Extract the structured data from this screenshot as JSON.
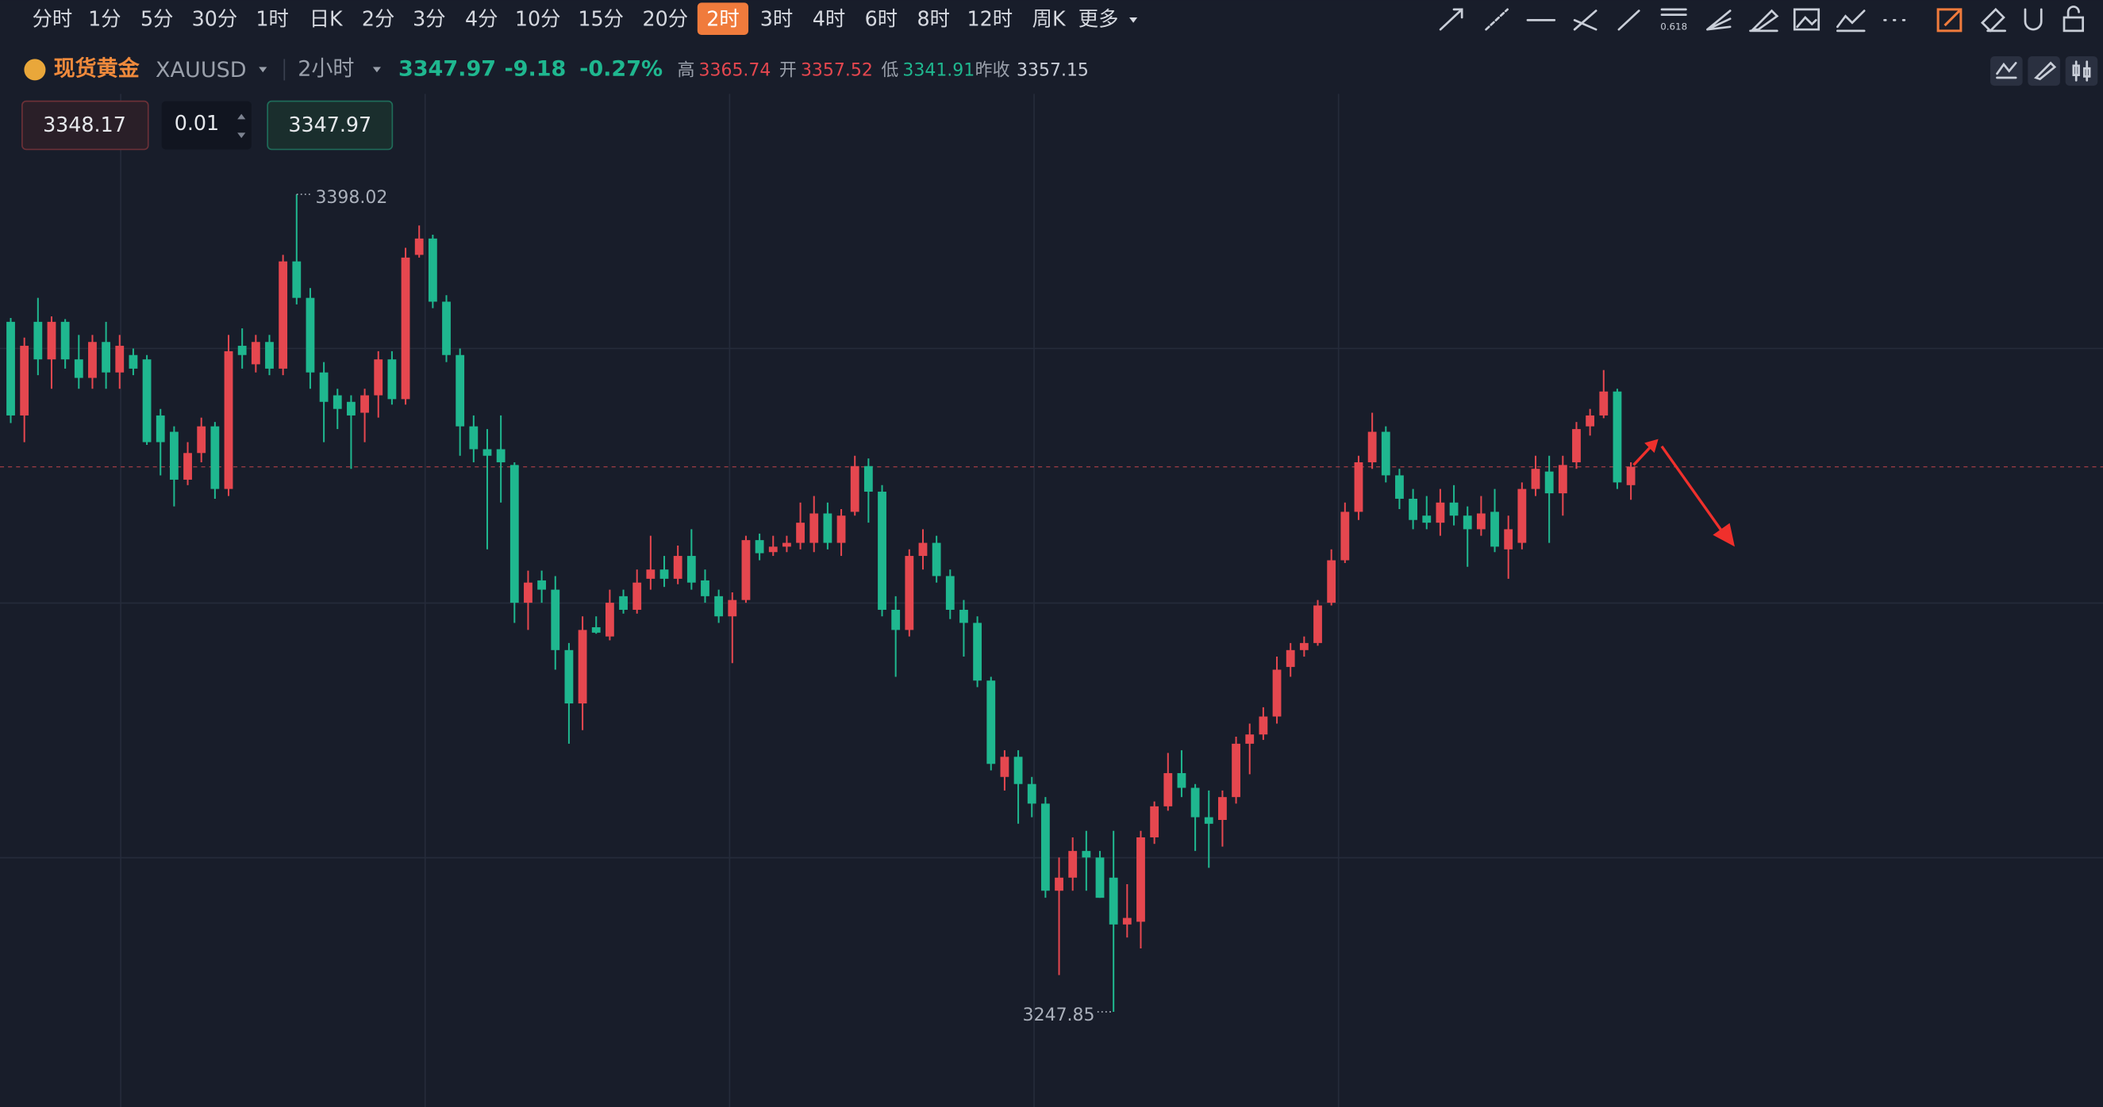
{
  "toolbar": {
    "timeframes": [
      "分时",
      "1分",
      "5分",
      "30分",
      "1时",
      "日K",
      "2分",
      "3分",
      "4分",
      "10分",
      "15分",
      "20分",
      "2时",
      "3时",
      "4时",
      "6时",
      "8时",
      "12时",
      "周K",
      "更多"
    ],
    "active": "2时",
    "fib_label": "0.618"
  },
  "header": {
    "name": "现货黄金",
    "symbol": "XAUUSD",
    "interval": "2小时",
    "last": 3347.97,
    "change": -9.18,
    "change_pct": "-0.27%",
    "high_label": "高",
    "high": 3365.74,
    "open_label": "开",
    "open": 3357.52,
    "low_label": "低",
    "low": 3341.91,
    "prev_close_label": "昨收",
    "prev_close": 3357.15
  },
  "order": {
    "sell": 3348.17,
    "quantity": 0.01,
    "buy": 3347.97
  },
  "chart_data": {
    "type": "candlestick",
    "up_color": "#e5474f",
    "down_color": "#1fb78f",
    "open": [
      3374.6,
      3357.4,
      3374.6,
      3367.7,
      3374.6,
      3367.7,
      3364.3,
      3370.9,
      3365.3,
      3368.5,
      3367.7,
      3357.4,
      3354.4,
      3345.6,
      3350.5,
      3355.4,
      3343.9,
      3370.2,
      3366.8,
      3370.9,
      3366.0,
      3385.7,
      3379.0,
      3365.3,
      3361.1,
      3359.9,
      3357.9,
      3361.1,
      3367.7,
      3360.4,
      3386.9,
      3389.9,
      3378.3,
      3368.5,
      3355.4,
      3351.2,
      3351.2,
      3348.3,
      3323.0,
      3327.1,
      3325.4,
      3314.3,
      3304.5,
      3318.5,
      3316.8,
      3324.2,
      3321.7,
      3327.4,
      3329.1,
      3327.4,
      3331.6,
      3327.1,
      3324.2,
      3320.5,
      3323.5,
      3334.5,
      3332.3,
      3333.3,
      3334.0,
      3334.0,
      3339.4,
      3334.0,
      3339.7,
      3348.1,
      3343.4,
      3321.7,
      3318.0,
      3331.6,
      3334.0,
      3327.9,
      3321.7,
      3319.3,
      3308.7,
      3291.0,
      3294.7,
      3289.7,
      3286.1,
      3270.1,
      3272.5,
      3277.4,
      3276.2,
      3272.5,
      3263.9,
      3264.4,
      3279.9,
      3285.6,
      3291.7,
      3289.0,
      3283.6,
      3283.1,
      3287.3,
      3297.1,
      3298.8,
      3302.1,
      3311.2,
      3314.3,
      3315.6,
      3323.0,
      3330.8,
      3339.7,
      3348.8,
      3354.4,
      3346.4,
      3342.1,
      3339.0,
      3337.7,
      3341.4,
      3339.0,
      3336.5,
      3339.7,
      3332.8,
      3334.0,
      3343.9,
      3347.1,
      3343.1,
      3348.8,
      3355.4,
      3357.4,
      3361.8,
      3344.6
    ],
    "high": [
      3375.3,
      3371.7,
      3379.0,
      3375.6,
      3375.1,
      3372.2,
      3372.2,
      3374.6,
      3372.2,
      3369.7,
      3368.5,
      3358.6,
      3355.4,
      3352.5,
      3357.0,
      3356.2,
      3372.2,
      3373.4,
      3372.2,
      3372.2,
      3386.9,
      3398.02,
      3380.8,
      3367.2,
      3362.3,
      3361.1,
      3362.3,
      3369.2,
      3369.2,
      3388.2,
      3392.3,
      3390.6,
      3379.5,
      3369.7,
      3357.4,
      3354.9,
      3357.4,
      3348.8,
      3328.9,
      3328.9,
      3327.9,
      3315.6,
      3320.5,
      3320.5,
      3325.4,
      3325.4,
      3329.1,
      3335.3,
      3331.6,
      3333.5,
      3336.5,
      3329.1,
      3325.4,
      3324.9,
      3335.3,
      3335.7,
      3335.3,
      3335.3,
      3341.4,
      3342.6,
      3341.4,
      3340.2,
      3350.0,
      3349.5,
      3344.6,
      3324.2,
      3332.8,
      3336.5,
      3335.3,
      3329.1,
      3323.5,
      3320.5,
      3309.4,
      3295.9,
      3295.9,
      3291.0,
      3287.3,
      3276.2,
      3279.9,
      3281.1,
      3277.4,
      3281.1,
      3271.3,
      3281.1,
      3286.5,
      3295.4,
      3295.9,
      3289.7,
      3288.5,
      3288.5,
      3298.4,
      3300.8,
      3303.8,
      3313.1,
      3315.6,
      3316.8,
      3323.5,
      3332.8,
      3341.4,
      3350.0,
      3357.9,
      3355.4,
      3347.6,
      3343.9,
      3342.6,
      3343.9,
      3344.6,
      3340.7,
      3342.6,
      3343.9,
      3339.0,
      3345.1,
      3350.0,
      3350.0,
      3350.0,
      3356.2,
      3358.6,
      3365.74,
      3362.3,
      3348.8
    ],
    "low": [
      3356.0,
      3352.5,
      3364.8,
      3362.3,
      3366.0,
      3362.3,
      3362.3,
      3362.3,
      3362.3,
      3364.8,
      3352.0,
      3346.4,
      3340.7,
      3344.6,
      3348.8,
      3342.1,
      3342.6,
      3366.0,
      3365.3,
      3364.8,
      3364.8,
      3377.8,
      3362.3,
      3352.5,
      3354.9,
      3347.6,
      3352.5,
      3357.0,
      3359.4,
      3359.4,
      3386.4,
      3377.1,
      3367.2,
      3350.0,
      3348.8,
      3332.8,
      3341.4,
      3319.3,
      3318.0,
      3323.0,
      3310.7,
      3297.1,
      3299.6,
      3317.3,
      3316.1,
      3321.0,
      3321.0,
      3325.4,
      3325.9,
      3326.4,
      3325.4,
      3323.0,
      3319.3,
      3311.9,
      3323.0,
      3330.8,
      3331.6,
      3332.3,
      3332.8,
      3332.3,
      3332.8,
      3331.6,
      3339.0,
      3337.7,
      3320.5,
      3309.4,
      3316.8,
      3329.1,
      3326.7,
      3320.0,
      3313.1,
      3307.5,
      3292.2,
      3288.5,
      3282.4,
      3283.6,
      3268.8,
      3254.6,
      3270.1,
      3270.1,
      3268.8,
      3247.85,
      3261.5,
      3259.5,
      3278.7,
      3284.8,
      3287.3,
      3277.4,
      3274.3,
      3278.2,
      3286.1,
      3291.5,
      3297.8,
      3300.8,
      3309.4,
      3313.1,
      3315.1,
      3322.5,
      3330.3,
      3338.2,
      3347.6,
      3345.1,
      3340.2,
      3336.5,
      3336.5,
      3335.3,
      3337.2,
      3329.6,
      3335.3,
      3332.3,
      3327.4,
      3332.8,
      3342.6,
      3334.0,
      3339.0,
      3347.6,
      3353.7,
      3356.9,
      3343.9,
      3341.91
    ],
    "close": [
      3357.4,
      3370.2,
      3367.7,
      3374.6,
      3367.7,
      3364.3,
      3370.9,
      3365.3,
      3370.2,
      3366.0,
      3352.5,
      3352.5,
      3345.6,
      3350.5,
      3355.4,
      3343.9,
      3369.2,
      3368.5,
      3370.9,
      3366.0,
      3385.7,
      3379.0,
      3365.3,
      3359.9,
      3358.6,
      3357.4,
      3361.1,
      3367.7,
      3360.4,
      3386.4,
      3389.9,
      3378.3,
      3368.5,
      3355.4,
      3351.2,
      3350.0,
      3348.8,
      3323.0,
      3326.7,
      3325.4,
      3314.3,
      3304.5,
      3318.0,
      3317.5,
      3323.0,
      3321.7,
      3326.7,
      3329.1,
      3327.4,
      3331.6,
      3326.7,
      3324.2,
      3320.5,
      3323.5,
      3334.5,
      3332.1,
      3333.3,
      3334.0,
      3337.7,
      3339.4,
      3334.0,
      3339.0,
      3348.1,
      3343.4,
      3321.7,
      3318.0,
      3331.6,
      3334.0,
      3327.9,
      3321.7,
      3319.3,
      3308.7,
      3293.4,
      3294.7,
      3289.7,
      3286.1,
      3270.1,
      3272.5,
      3277.4,
      3276.2,
      3268.8,
      3263.9,
      3265.1,
      3279.9,
      3285.6,
      3291.7,
      3289.0,
      3283.6,
      3282.4,
      3287.3,
      3297.1,
      3298.8,
      3302.1,
      3310.7,
      3314.3,
      3315.6,
      3322.5,
      3330.8,
      3339.7,
      3348.8,
      3354.4,
      3346.4,
      3342.1,
      3338.2,
      3337.7,
      3341.4,
      3339.0,
      3336.5,
      3339.4,
      3333.3,
      3336.5,
      3343.9,
      3347.6,
      3343.1,
      3348.3,
      3354.9,
      3357.4,
      3361.8,
      3345.1,
      3347.97
    ]
  }
}
